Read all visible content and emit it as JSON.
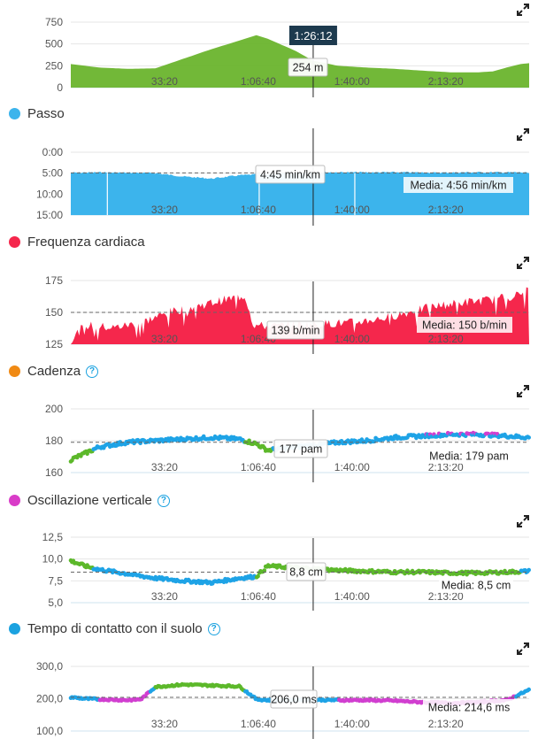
{
  "colors": {
    "elevation": "#6ab42d",
    "pace": "#3cb4ec",
    "hr": "#f5274c",
    "cadence_legend": "#f08a14",
    "vo_legend": "#d93cc8",
    "gct_legend": "#1ba2e0",
    "green": "#5cb82a",
    "blue": "#1ea3e6",
    "magenta": "#d13fd0",
    "orange": "#ef8a14"
  },
  "x_ticks": [
    "33:20",
    "1:06:40",
    "1:40:00",
    "2:13:20"
  ],
  "cursor_time": "1:26:12",
  "panels": {
    "pace": {
      "title": "Passo"
    },
    "hr": {
      "title": "Frequenza cardiaca"
    },
    "cadence": {
      "title": "Cadenza"
    },
    "vo": {
      "title": "Oscillazione verticale"
    },
    "gct": {
      "title": "Tempo di contatto con il suolo"
    }
  },
  "chart_data": [
    {
      "type": "area",
      "name": "elevation",
      "unit": "m",
      "y_ticks": [
        "750",
        "500",
        "250",
        "0"
      ],
      "ylim": [
        0,
        750
      ],
      "x_ticks": [
        "33:20",
        "1:06:40",
        "1:40:00",
        "2:13:20"
      ],
      "cursor_label": "1:26:12",
      "cursor_value": "254 m",
      "x_minutes": [
        0,
        10,
        20,
        30,
        40,
        50,
        60,
        66,
        70,
        80,
        86,
        95,
        105,
        115,
        125,
        135,
        145,
        150,
        155,
        160,
        163
      ],
      "values": [
        270,
        230,
        215,
        220,
        330,
        440,
        540,
        600,
        560,
        420,
        310,
        250,
        230,
        215,
        195,
        175,
        175,
        185,
        230,
        270,
        280
      ]
    },
    {
      "type": "area",
      "name": "pace",
      "unit": "min/km",
      "y_ticks": [
        "0:00",
        "5:00",
        "10:00",
        "15:00"
      ],
      "ylim_minutes_inverted": [
        0,
        15
      ],
      "x_ticks": [
        "33:20",
        "1:06:40",
        "1:40:00",
        "2:13:20"
      ],
      "cursor_value": "4:45 min/km",
      "average_label": "Media: 4:56 min/km",
      "average_minutes": 4.93,
      "x_minutes": [
        0,
        10,
        20,
        30,
        40,
        50,
        60,
        70,
        80,
        90,
        100,
        110,
        120,
        130,
        140,
        150,
        160,
        163
      ],
      "values": [
        4.9,
        4.8,
        4.9,
        5.0,
        5.8,
        6.3,
        5.5,
        5.2,
        4.9,
        4.8,
        4.8,
        4.8,
        4.8,
        4.9,
        4.8,
        4.8,
        4.8,
        5.0
      ]
    },
    {
      "type": "area",
      "name": "heart_rate",
      "unit": "b/min",
      "y_ticks": [
        "175",
        "150",
        "125"
      ],
      "ylim": [
        125,
        180
      ],
      "x_ticks": [
        "33:20",
        "1:06:40",
        "1:40:00",
        "2:13:20"
      ],
      "cursor_value": "139 b/min",
      "average_label": "Media: 150 b/min",
      "average": 150,
      "x_minutes": [
        0,
        5,
        15,
        25,
        35,
        45,
        55,
        62,
        65,
        70,
        80,
        90,
        100,
        110,
        120,
        130,
        140,
        150,
        160,
        163
      ],
      "values": [
        128,
        140,
        138,
        142,
        150,
        155,
        160,
        163,
        140,
        139,
        140,
        141,
        142,
        145,
        150,
        155,
        158,
        160,
        164,
        168
      ]
    },
    {
      "type": "scatter",
      "name": "cadence",
      "unit": "pam",
      "y_ticks": [
        "200",
        "180",
        "160"
      ],
      "ylim": [
        160,
        200
      ],
      "x_ticks": [
        "33:20",
        "1:06:40",
        "1:40:00",
        "2:13:20"
      ],
      "cursor_value": "177 pam",
      "average_label": "Media: 179 pam",
      "average": 179,
      "x_minutes": [
        0,
        5,
        10,
        20,
        30,
        40,
        50,
        60,
        66,
        70,
        80,
        86,
        95,
        105,
        115,
        125,
        135,
        145,
        155,
        163
      ],
      "values": [
        168,
        172,
        176,
        179,
        180,
        181,
        182,
        181,
        178,
        174,
        176,
        177,
        179,
        180,
        182,
        183,
        184,
        184,
        183,
        182
      ]
    },
    {
      "type": "scatter",
      "name": "vertical_oscillation",
      "unit": "cm",
      "y_ticks": [
        "12,5",
        "10,0",
        "7,5",
        "5,0"
      ],
      "ylim": [
        5,
        12.5
      ],
      "x_ticks": [
        "33:20",
        "1:06:40",
        "1:40:00",
        "2:13:20"
      ],
      "cursor_value": "8,8 cm",
      "average_label": "Media: 8,5 cm",
      "average": 8.5,
      "x_minutes": [
        0,
        5,
        10,
        20,
        30,
        40,
        50,
        60,
        66,
        70,
        80,
        86,
        95,
        105,
        115,
        125,
        135,
        145,
        155,
        163
      ],
      "values": [
        9.8,
        9.2,
        8.8,
        8.3,
        7.8,
        7.5,
        7.3,
        7.8,
        8.0,
        9.2,
        9.0,
        8.9,
        8.7,
        8.6,
        8.5,
        8.5,
        8.4,
        8.4,
        8.5,
        8.6
      ]
    },
    {
      "type": "scatter",
      "name": "ground_contact_time",
      "unit": "ms",
      "y_ticks": [
        "300,0",
        "200,0",
        "100,0"
      ],
      "ylim": [
        100,
        320
      ],
      "x_ticks": [
        "33:20",
        "1:06:40",
        "1:40:00",
        "2:13:20"
      ],
      "cursor_value": "206,0 ms",
      "average_label": "Media: 214,6 ms",
      "average": 214.6,
      "x_minutes": [
        0,
        5,
        10,
        20,
        25,
        30,
        40,
        50,
        60,
        66,
        70,
        80,
        86,
        95,
        105,
        115,
        125,
        135,
        145,
        155,
        163
      ],
      "values": [
        215,
        210,
        208,
        205,
        208,
        250,
        258,
        255,
        252,
        208,
        205,
        207,
        206,
        205,
        205,
        203,
        198,
        195,
        198,
        205,
        240
      ]
    }
  ]
}
